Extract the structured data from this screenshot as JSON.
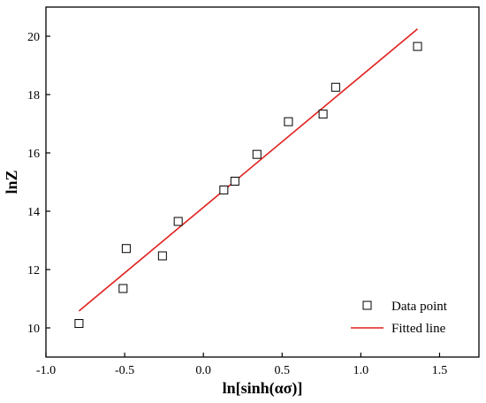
{
  "chart_data": {
    "type": "scatter",
    "xlabel": "ln[sinh(ασ)]",
    "ylabel": "lnZ",
    "xlim": [
      -1.0,
      1.75
    ],
    "ylim": [
      9.0,
      21.0
    ],
    "xticks": [
      -1.0,
      -0.5,
      0.0,
      0.5,
      1.0,
      1.5
    ],
    "yticks": [
      10,
      12,
      14,
      16,
      18,
      20
    ],
    "grid": false,
    "legend_position": "bottom-right",
    "series": [
      {
        "name": "Data point",
        "kind": "scatter",
        "marker": "open-square",
        "color": "#000000",
        "points": [
          {
            "x": -0.79,
            "y": 10.15
          },
          {
            "x": -0.51,
            "y": 11.35
          },
          {
            "x": -0.49,
            "y": 12.72
          },
          {
            "x": -0.26,
            "y": 12.47
          },
          {
            "x": -0.16,
            "y": 13.65
          },
          {
            "x": 0.13,
            "y": 14.73
          },
          {
            "x": 0.2,
            "y": 15.03
          },
          {
            "x": 0.34,
            "y": 15.95
          },
          {
            "x": 0.54,
            "y": 17.07
          },
          {
            "x": 0.76,
            "y": 17.33
          },
          {
            "x": 0.84,
            "y": 18.25
          },
          {
            "x": 1.36,
            "y": 19.65
          }
        ]
      },
      {
        "name": "Fitted line",
        "kind": "line",
        "color": "#e0201c",
        "points": [
          {
            "x": -0.79,
            "y": 10.58
          },
          {
            "x": 1.36,
            "y": 20.25
          }
        ]
      }
    ]
  }
}
